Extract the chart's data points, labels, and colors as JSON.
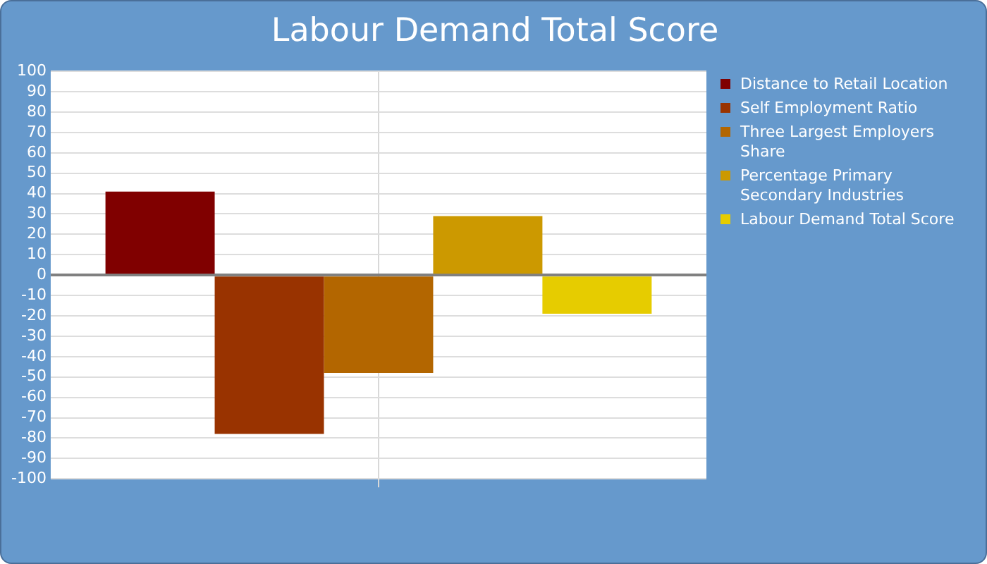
{
  "chart_data": {
    "type": "bar",
    "title": "Labour Demand Total Score",
    "categories": [
      null
    ],
    "series": [
      {
        "name": "Distance to Retail Location",
        "color": "#800000",
        "values": [
          41
        ]
      },
      {
        "name": "Self Employment Ratio",
        "color": "#993300",
        "values": [
          -78
        ]
      },
      {
        "name": "Three Largest Employers Share",
        "color": "#b36600",
        "values": [
          -48
        ]
      },
      {
        "name": "Percentage Primary Secondary Industries",
        "color": "#cc9900",
        "values": [
          29
        ]
      },
      {
        "name": "Labour Demand Total Score",
        "color": "#e6cc00",
        "values": [
          -19
        ]
      }
    ],
    "ylim": [
      -100,
      100
    ],
    "yticks": [
      -100,
      -90,
      -80,
      -70,
      -60,
      -50,
      -40,
      -30,
      -20,
      -10,
      0,
      10,
      20,
      30,
      40,
      50,
      60,
      70,
      80,
      90,
      100
    ],
    "grid": true,
    "legend": "right"
  }
}
